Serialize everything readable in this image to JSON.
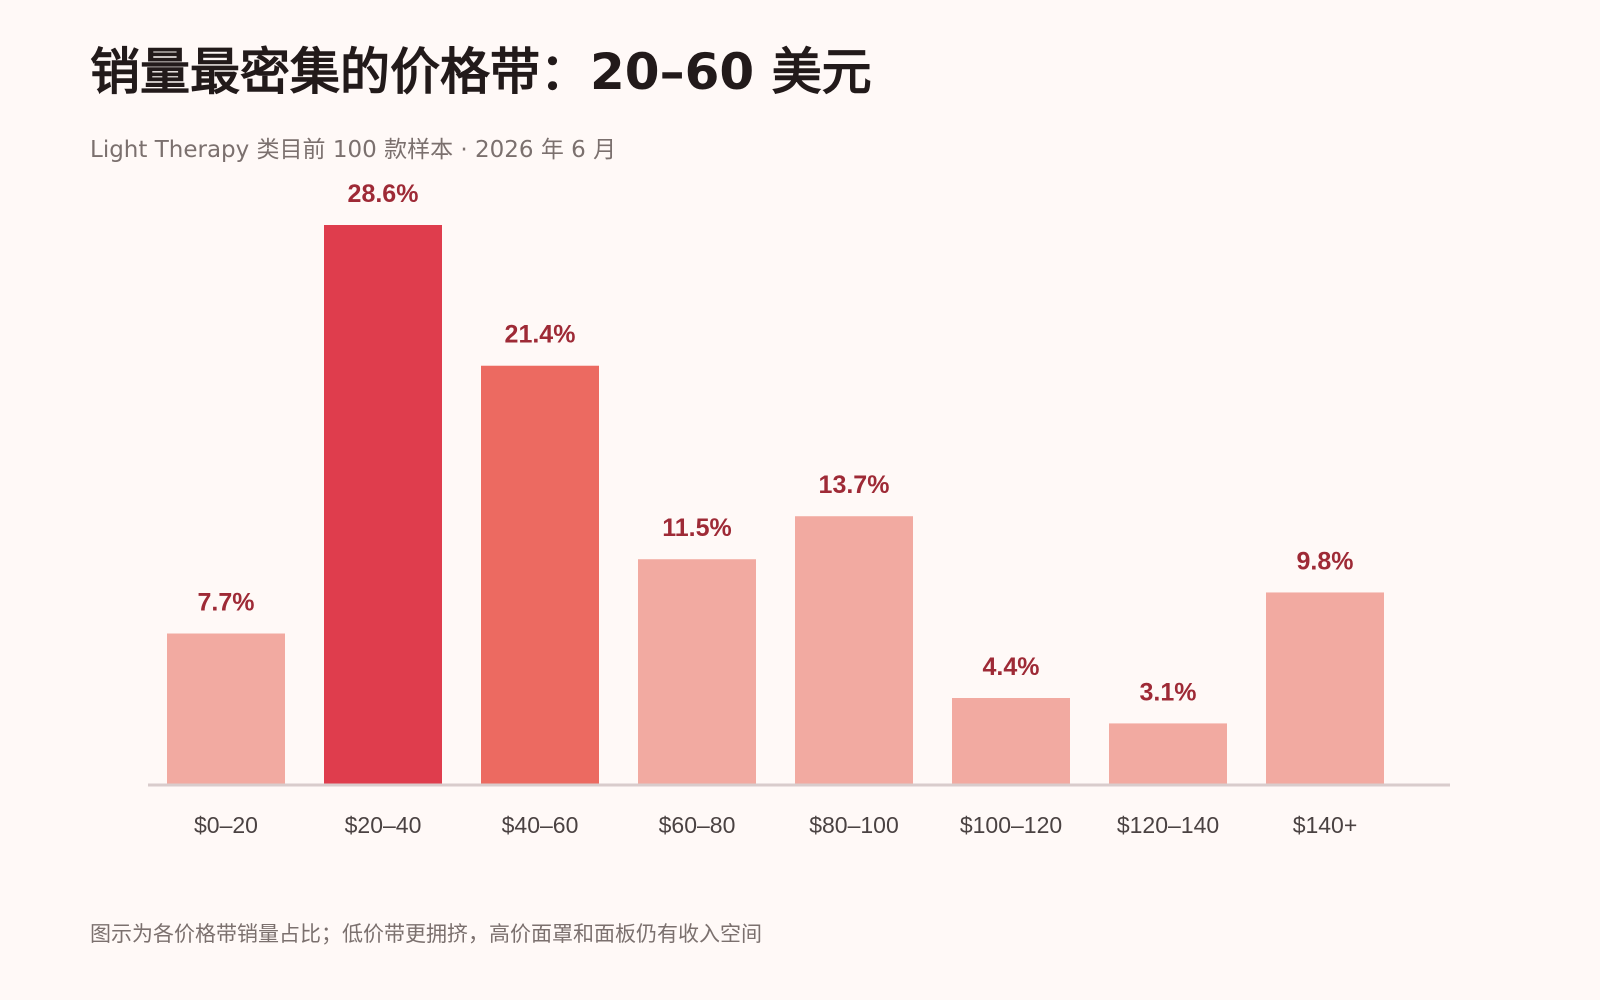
{
  "title": "销量最密集的价格带：20–60 美元",
  "subtitle": "Light Therapy 类目前 100 款样本 · 2026 年 6 月",
  "note": "图示为各价格带销量占比；低价带更拥挤，高价面罩和面板仍有收入空间",
  "colors": {
    "background": "#fff9f7",
    "highlight_primary": "#df3d4d",
    "highlight_secondary": "#ec6a61",
    "default_bar": "#f2aaa1",
    "value_label": "#9e2a36",
    "baseline": "#d9cccc"
  },
  "chart_data": {
    "type": "bar",
    "title": "销量最密集的价格带：20–60 美元",
    "categories": [
      "$0–20",
      "$20–40",
      "$40–60",
      "$60–80",
      "$80–100",
      "$100–120",
      "$120–140",
      "$140+"
    ],
    "values": [
      7.7,
      28.6,
      21.4,
      11.5,
      13.7,
      4.4,
      3.1,
      9.8
    ],
    "value_labels": [
      "7.7%",
      "28.6%",
      "21.4%",
      "11.5%",
      "13.7%",
      "4.4%",
      "3.1%",
      "9.8%"
    ],
    "bar_color_keys": [
      "default_bar",
      "highlight_primary",
      "highlight_secondary",
      "default_bar",
      "default_bar",
      "default_bar",
      "default_bar",
      "default_bar"
    ],
    "unit": "%",
    "xlabel": "",
    "ylabel": "",
    "ylim": [
      0,
      28.6
    ],
    "grid": false,
    "legend": "none"
  }
}
